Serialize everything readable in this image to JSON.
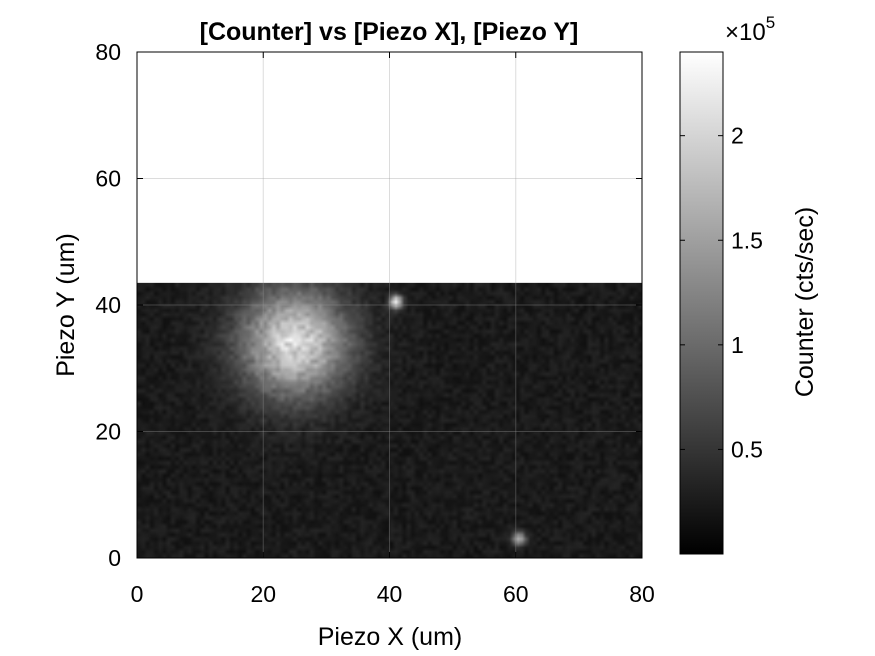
{
  "chart_data": {
    "type": "heatmap",
    "title": "[Counter] vs [Piezo X], [Piezo Y]",
    "xlabel": "Piezo X (um)",
    "ylabel": "Piezo Y (um)",
    "colorbar_label": "Counter (cts/sec)",
    "colorbar_multiplier": "×10",
    "colorbar_exponent": "5",
    "xlim": [
      0,
      80
    ],
    "ylim": [
      0,
      80
    ],
    "clim": [
      0,
      240000
    ],
    "x_ticks": [
      "0",
      "20",
      "40",
      "60",
      "80"
    ],
    "y_ticks": [
      "0",
      "20",
      "40",
      "60",
      "80"
    ],
    "colorbar_ticks": [
      "0.5",
      "1",
      "1.5",
      "2"
    ],
    "colormap": "gray",
    "grid": true,
    "scan_extent_y": [
      0,
      43.5
    ],
    "unscanned_value": 240000,
    "background_counts": 25000,
    "features": [
      {
        "kind": "bright-spot",
        "x": 25,
        "y": 34,
        "peak_counts": 180000,
        "sigma_um": 6
      },
      {
        "kind": "bright-spot",
        "x": 41,
        "y": 40.5,
        "peak_counts": 200000,
        "sigma_um": 0.7
      },
      {
        "kind": "bright-spot",
        "x": 60.5,
        "y": 3,
        "peak_counts": 150000,
        "sigma_um": 0.7
      }
    ]
  }
}
